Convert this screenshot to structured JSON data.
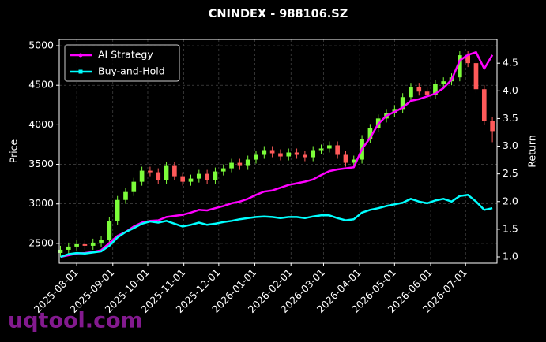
{
  "chart_data": {
    "type": "candlestick",
    "title": "CNINDEX - 988106.SZ",
    "ylabel": "Price",
    "y2label": "Return",
    "watermark": "uqtool.com",
    "up_color": "#7cfc3a",
    "down_color": "#ff5a5a",
    "grid": true,
    "legend": "upper left",
    "x": [
      "2025-07-18",
      "2025-07-25",
      "2025-08-01",
      "2025-08-08",
      "2025-08-15",
      "2025-08-22",
      "2025-08-29",
      "2025-09-05",
      "2025-09-12",
      "2025-09-19",
      "2025-09-26",
      "2025-10-03",
      "2025-10-10",
      "2025-10-17",
      "2025-10-24",
      "2025-10-31",
      "2025-11-07",
      "2025-11-14",
      "2025-11-21",
      "2025-11-28",
      "2025-12-05",
      "2025-12-12",
      "2025-12-19",
      "2025-12-26",
      "2026-01-02",
      "2026-01-09",
      "2026-01-16",
      "2026-01-23",
      "2026-01-30",
      "2026-02-06",
      "2026-02-13",
      "2026-02-20",
      "2026-02-27",
      "2026-03-06",
      "2026-03-13",
      "2026-03-20",
      "2026-03-27",
      "2026-04-03",
      "2026-04-10",
      "2026-04-17",
      "2026-04-24",
      "2026-05-01",
      "2026-05-08",
      "2026-05-15",
      "2026-05-22",
      "2026-05-29",
      "2026-06-05",
      "2026-06-12",
      "2026-06-19",
      "2026-06-26",
      "2026-07-03",
      "2026-07-10",
      "2026-07-17",
      "2026-07-24"
    ],
    "open": [
      2380,
      2420,
      2460,
      2490,
      2470,
      2510,
      2540,
      2780,
      3050,
      3150,
      3280,
      3420,
      3400,
      3300,
      3480,
      3350,
      3280,
      3320,
      3380,
      3300,
      3410,
      3450,
      3520,
      3480,
      3560,
      3620,
      3680,
      3640,
      3600,
      3650,
      3620,
      3590,
      3680,
      3700,
      3740,
      3620,
      3520,
      3560,
      3820,
      3960,
      4080,
      4150,
      4200,
      4350,
      4480,
      4420,
      4380,
      4520,
      4550,
      4600,
      4880,
      4780,
      4450,
      4050
    ],
    "high": [
      2470,
      2510,
      2540,
      2540,
      2560,
      2590,
      2830,
      3100,
      3200,
      3330,
      3470,
      3470,
      3450,
      3530,
      3530,
      3400,
      3370,
      3430,
      3430,
      3460,
      3500,
      3570,
      3570,
      3610,
      3670,
      3730,
      3730,
      3690,
      3700,
      3700,
      3670,
      3730,
      3750,
      3790,
      3790,
      3670,
      3610,
      3870,
      4010,
      4130,
      4200,
      4250,
      4400,
      4530,
      4530,
      4470,
      4570,
      4600,
      4650,
      4930,
      4930,
      4830,
      4500,
      4100
    ],
    "low": [
      2330,
      2370,
      2410,
      2420,
      2420,
      2460,
      2490,
      2730,
      3000,
      3100,
      3230,
      3350,
      3250,
      3250,
      3300,
      3230,
      3230,
      3270,
      3250,
      3250,
      3360,
      3400,
      3430,
      3430,
      3510,
      3570,
      3590,
      3550,
      3550,
      3570,
      3540,
      3540,
      3630,
      3650,
      3570,
      3470,
      3470,
      3510,
      3770,
      3910,
      4030,
      4100,
      4150,
      4300,
      4370,
      4330,
      4330,
      4470,
      4500,
      4550,
      4730,
      4400,
      4000,
      3780
    ],
    "close": [
      2420,
      2460,
      2490,
      2470,
      2510,
      2540,
      2780,
      3050,
      3150,
      3280,
      3420,
      3400,
      3300,
      3480,
      3350,
      3280,
      3320,
      3380,
      3300,
      3410,
      3450,
      3520,
      3480,
      3560,
      3620,
      3680,
      3640,
      3600,
      3650,
      3620,
      3590,
      3680,
      3700,
      3740,
      3620,
      3520,
      3560,
      3820,
      3960,
      4080,
      4150,
      4200,
      4350,
      4480,
      4420,
      4380,
      4520,
      4550,
      4600,
      4880,
      4780,
      4450,
      4050,
      3920
    ],
    "series": [
      {
        "name": "AI Strategy",
        "color": "#ff00ff",
        "axis": "y2",
        "marker": "circle",
        "values": [
          1.0,
          1.03,
          1.06,
          1.07,
          1.09,
          1.12,
          1.25,
          1.38,
          1.45,
          1.55,
          1.62,
          1.65,
          1.66,
          1.72,
          1.74,
          1.76,
          1.8,
          1.85,
          1.84,
          1.88,
          1.92,
          1.97,
          2.0,
          2.05,
          2.12,
          2.18,
          2.2,
          2.25,
          2.3,
          2.33,
          2.36,
          2.4,
          2.48,
          2.55,
          2.58,
          2.6,
          2.62,
          2.95,
          3.15,
          3.4,
          3.55,
          3.62,
          3.7,
          3.82,
          3.85,
          3.9,
          3.95,
          4.05,
          4.2,
          4.55,
          4.65,
          4.7,
          4.4,
          4.65
        ]
      },
      {
        "name": "Buy-and-Hold",
        "color": "#00ffff",
        "axis": "y2",
        "marker": "square",
        "values": [
          1.0,
          1.05,
          1.07,
          1.06,
          1.08,
          1.1,
          1.2,
          1.35,
          1.45,
          1.52,
          1.6,
          1.64,
          1.62,
          1.65,
          1.6,
          1.55,
          1.58,
          1.62,
          1.58,
          1.6,
          1.63,
          1.65,
          1.68,
          1.7,
          1.72,
          1.73,
          1.72,
          1.7,
          1.72,
          1.72,
          1.7,
          1.73,
          1.75,
          1.75,
          1.7,
          1.66,
          1.68,
          1.8,
          1.85,
          1.88,
          1.92,
          1.95,
          1.98,
          2.05,
          2.0,
          1.97,
          2.02,
          2.05,
          2.0,
          2.1,
          2.12,
          2.0,
          1.85,
          1.88
        ]
      }
    ],
    "xlim": [
      "2025-07-17",
      "2026-07-28"
    ],
    "xticks": [
      "2025-08-01",
      "2025-09-01",
      "2025-10-01",
      "2025-11-01",
      "2025-12-01",
      "2026-01-01",
      "2026-02-01",
      "2026-03-01",
      "2026-04-01",
      "2026-05-01",
      "2026-06-01",
      "2026-07-01"
    ],
    "ylim": [
      2250,
      5080
    ],
    "yticks": [
      2500,
      3000,
      3500,
      4000,
      4500,
      5000
    ],
    "y2lim": [
      0.886,
      4.93
    ],
    "y2ticks": [
      1.0,
      1.5,
      2.0,
      2.5,
      3.0,
      3.5,
      4.0,
      4.5
    ]
  }
}
